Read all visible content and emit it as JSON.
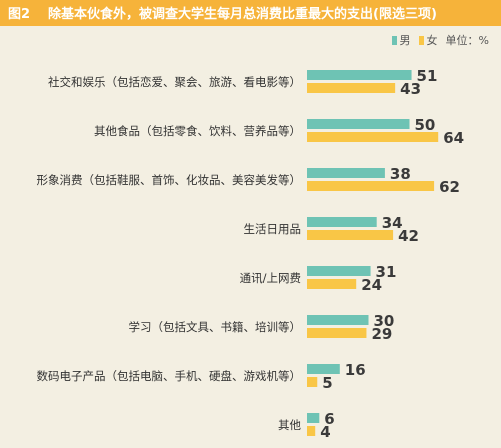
{
  "header": {
    "fig_tag": "图2",
    "title": "除基本伙食外，被调查大学生每月总消费比重最大的支出(限选三项)"
  },
  "legend": {
    "male_label": "男",
    "female_label": "女",
    "unit": "单位：%"
  },
  "colors": {
    "male": "#6ec3b4",
    "female": "#f9c646",
    "header": "#f6b33a",
    "background": "#f3efe2"
  },
  "chart_data": {
    "type": "bar",
    "orientation": "horizontal",
    "title": "除基本伙食外，被调查大学生每月总消费比重最大的支出(限选三项)",
    "unit": "单位：%",
    "categories": [
      "社交和娱乐（包括恋爱、聚会、旅游、看电影等）",
      "其他食品（包括零食、饮料、营养品等）",
      "形象消费（包括鞋服、首饰、化妆品、美容美发等）",
      "生活日用品",
      "通讯/上网费",
      "学习（包括文具、书籍、培训等）",
      "数码电子产品（包括电脑、手机、硬盘、游戏机等）",
      "其他"
    ],
    "series": [
      {
        "name": "男",
        "values": [
          51,
          50,
          38,
          34,
          31,
          30,
          16,
          6
        ]
      },
      {
        "name": "女",
        "values": [
          43,
          64,
          62,
          42,
          24,
          29,
          5,
          4
        ]
      }
    ],
    "legend_position": "top-right",
    "grid": false
  }
}
